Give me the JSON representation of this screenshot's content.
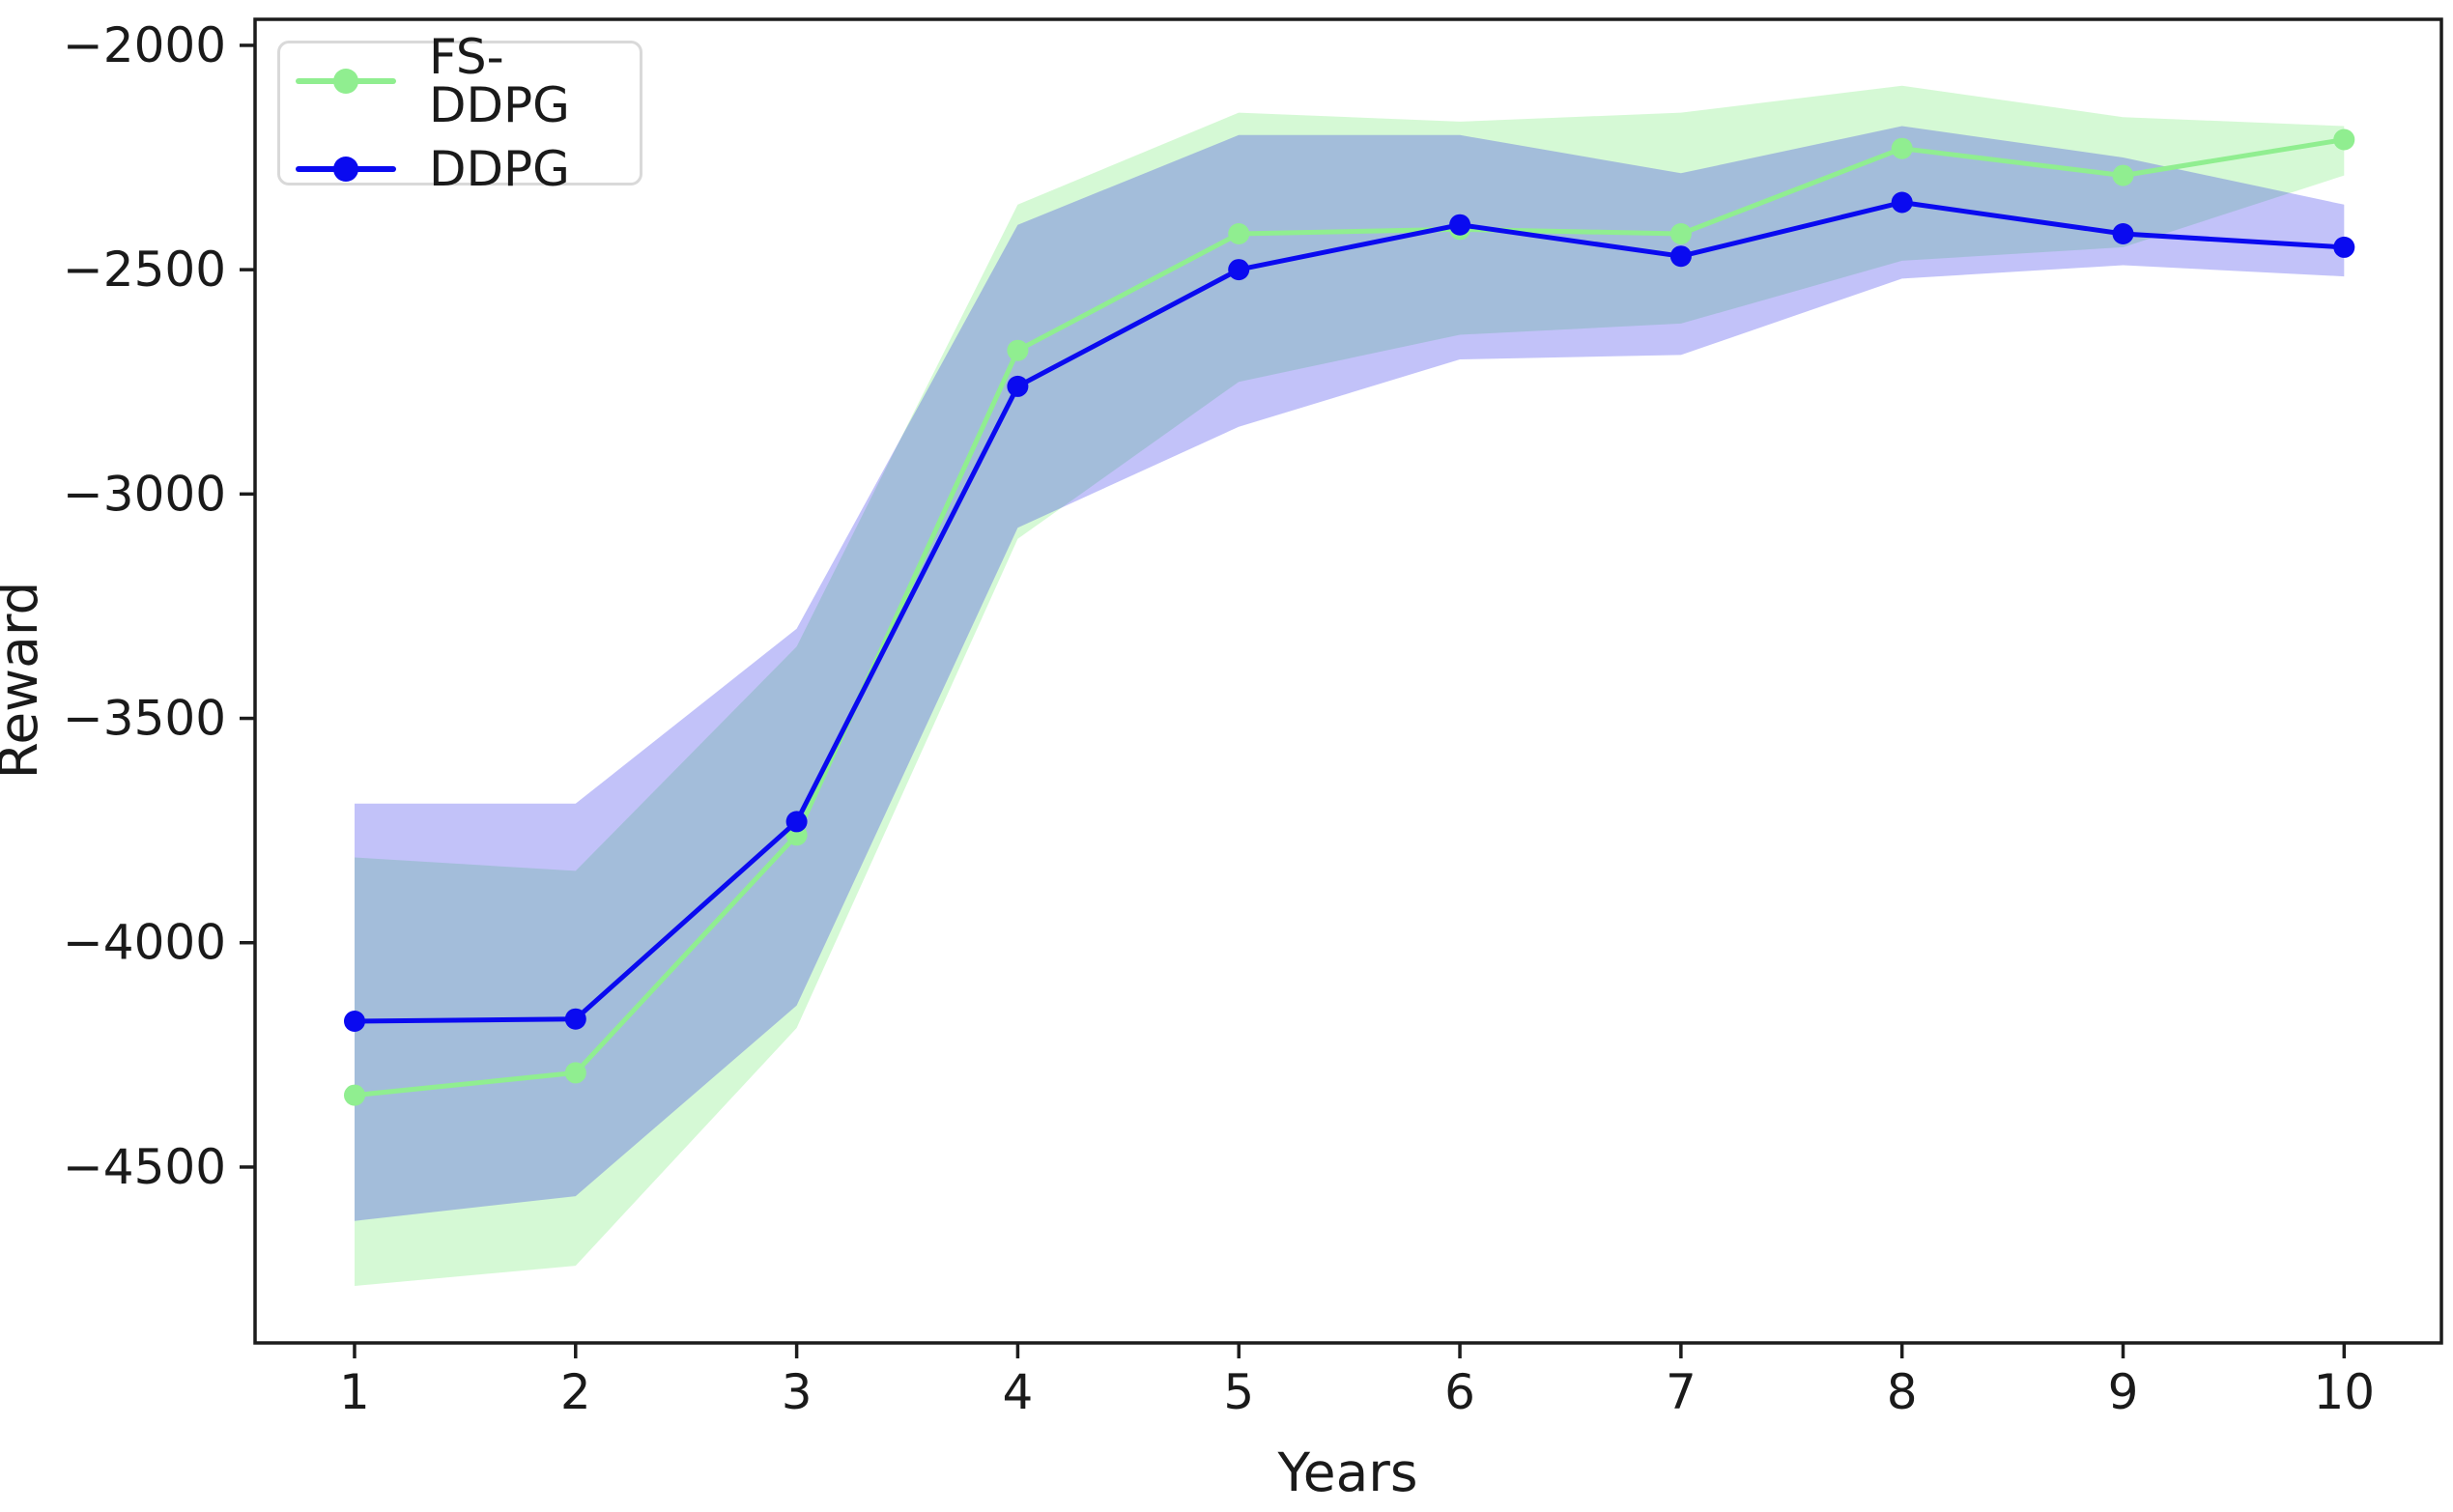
{
  "axes": {
    "xlabel": "Years",
    "ylabel": "Reward"
  },
  "legend": {
    "items": [
      {
        "label": "FS-DDPG",
        "color": "#90ee90"
      },
      {
        "label": "DDPG",
        "color": "#0a0af0"
      }
    ]
  },
  "chart_data": {
    "type": "line",
    "title": "",
    "xlabel": "Years",
    "ylabel": "Reward",
    "grid": false,
    "legend_position": "upper left",
    "x": [
      1,
      2,
      3,
      4,
      5,
      6,
      7,
      8,
      9,
      10
    ],
    "xticks": [
      1,
      2,
      3,
      4,
      5,
      6,
      7,
      8,
      9,
      10
    ],
    "xtick_labels": [
      "1",
      "2",
      "3",
      "4",
      "5",
      "6",
      "7",
      "8",
      "9",
      "10"
    ],
    "yticks": [
      -2000,
      -2500,
      -3000,
      -3500,
      -4000,
      -4500
    ],
    "ytick_labels": [
      "−2000",
      "−2500",
      "−3000",
      "−3500",
      "−4000",
      "−4500"
    ],
    "xlim": [
      0.55,
      10.44
    ],
    "ylim": [
      -4892,
      -1942
    ],
    "series": [
      {
        "name": "FS-DDPG",
        "color": "#90ee90",
        "fill_color": "rgba(144,238,144,0.38)",
        "values": [
          -4340,
          -4290,
          -3760,
          -2680,
          -2420,
          -2410,
          -2420,
          -2230,
          -2290,
          -2210
        ],
        "band_upper": [
          -3810,
          -3840,
          -3340,
          -2355,
          -2150,
          -2170,
          -2150,
          -2090,
          -2160,
          -2180
        ],
        "band_lower": [
          -4765,
          -4720,
          -4190,
          -3100,
          -2750,
          -2645,
          -2620,
          -2480,
          -2450,
          -2290
        ]
      },
      {
        "name": "DDPG",
        "color": "#0a0af0",
        "fill_color": "rgba(28,28,232,0.27)",
        "values": [
          -4175,
          -4170,
          -3730,
          -2760,
          -2500,
          -2400,
          -2470,
          -2350,
          -2420,
          -2450
        ],
        "band_upper": [
          -3690,
          -3690,
          -3300,
          -2400,
          -2200,
          -2200,
          -2285,
          -2180,
          -2250,
          -2355
        ],
        "band_lower": [
          -4620,
          -4565,
          -4140,
          -3075,
          -2850,
          -2700,
          -2690,
          -2520,
          -2490,
          -2515
        ]
      }
    ]
  }
}
